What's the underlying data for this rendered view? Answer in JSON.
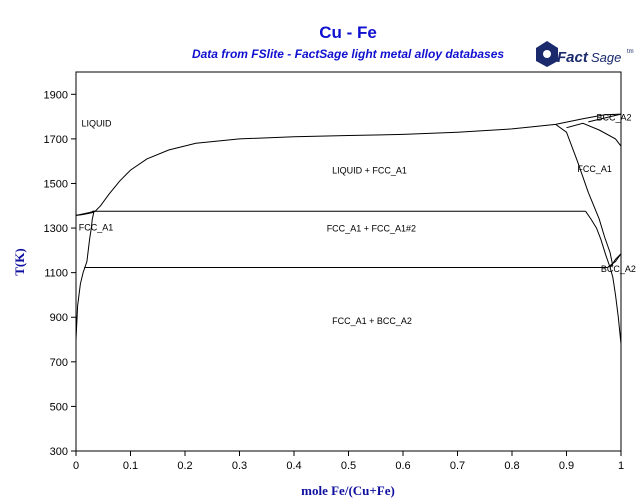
{
  "chart_data": {
    "type": "line",
    "title": "Cu - Fe",
    "subtitle": "Data from FSlite - FactSage light metal alloy databases",
    "xlabel": "mole Fe/(Cu+Fe)",
    "ylabel": "T(K)",
    "xlim": [
      0,
      1
    ],
    "ylim": [
      300,
      2000
    ],
    "xticks": [
      0,
      0.1,
      0.2,
      0.3,
      0.4,
      0.5,
      0.6,
      0.7,
      0.8,
      0.9,
      1
    ],
    "xtick_labels": [
      "0",
      "0.1",
      "0.2",
      "0.3",
      "0.4",
      "0.5",
      "0.6",
      "0.7",
      "0.8",
      "0.9",
      "1"
    ],
    "yticks": [
      300,
      500,
      700,
      900,
      1100,
      1300,
      1500,
      1700,
      1900
    ],
    "ytick_labels": [
      "300",
      "500",
      "700",
      "900",
      "1100",
      "1300",
      "1500",
      "1700",
      "1900"
    ],
    "grid": false,
    "series": [
      {
        "values": [
          [
            0,
            1357
          ],
          [
            0.01,
            1360
          ],
          [
            0.02,
            1364
          ],
          [
            0.03,
            1369
          ],
          [
            0.035,
            1375
          ],
          [
            0.045,
            1400
          ],
          [
            0.06,
            1450
          ],
          [
            0.08,
            1510
          ],
          [
            0.1,
            1560
          ],
          [
            0.13,
            1610
          ],
          [
            0.17,
            1650
          ],
          [
            0.22,
            1680
          ],
          [
            0.3,
            1700
          ],
          [
            0.4,
            1710
          ],
          [
            0.5,
            1715
          ],
          [
            0.6,
            1720
          ],
          [
            0.7,
            1730
          ],
          [
            0.8,
            1745
          ],
          [
            0.88,
            1765
          ],
          [
            0.93,
            1790
          ],
          [
            0.97,
            1808
          ],
          [
            1,
            1811
          ]
        ]
      },
      {
        "values": [
          [
            0,
            1357
          ],
          [
            0.01,
            1362
          ],
          [
            0.025,
            1370
          ],
          [
            0.033,
            1375
          ],
          [
            0.035,
            1375
          ]
        ]
      },
      {
        "values": [
          [
            0.03,
            1375
          ],
          [
            0.935,
            1375
          ]
        ]
      },
      {
        "values": [
          [
            0.015,
            1123
          ],
          [
            0.975,
            1123
          ]
        ]
      },
      {
        "values": [
          [
            0,
            800
          ],
          [
            0.003,
            950
          ],
          [
            0.008,
            1050
          ],
          [
            0.013,
            1100
          ],
          [
            0.02,
            1150
          ],
          [
            0.025,
            1250
          ],
          [
            0.028,
            1300
          ],
          [
            0.03,
            1340
          ],
          [
            0.033,
            1375
          ]
        ]
      },
      {
        "values": [
          [
            0.935,
            1375
          ],
          [
            0.945,
            1340
          ],
          [
            0.955,
            1300
          ],
          [
            0.963,
            1250
          ],
          [
            0.972,
            1180
          ],
          [
            0.98,
            1123
          ]
        ]
      },
      {
        "values": [
          [
            0.88,
            1765
          ],
          [
            0.9,
            1730
          ],
          [
            0.92,
            1600
          ],
          [
            0.94,
            1460
          ],
          [
            0.95,
            1400
          ],
          [
            0.96,
            1340
          ],
          [
            0.97,
            1260
          ],
          [
            0.98,
            1190
          ],
          [
            0.985,
            1130
          ]
        ]
      },
      {
        "values": [
          [
            0.9,
            1750
          ],
          [
            0.93,
            1770
          ],
          [
            0.96,
            1740
          ],
          [
            0.99,
            1700
          ],
          [
            1,
            1667
          ]
        ]
      },
      {
        "values": [
          [
            0.94,
            1776
          ],
          [
            1,
            1811
          ]
        ]
      },
      {
        "values": [
          [
            0.975,
            1123
          ],
          [
            0.99,
            1150
          ],
          [
            1,
            1185
          ]
        ]
      },
      {
        "values": [
          [
            0.98,
            1123
          ],
          [
            0.99,
            1160
          ],
          [
            1,
            1185
          ]
        ]
      },
      {
        "values": [
          [
            1,
            780
          ],
          [
            0.995,
            900
          ],
          [
            0.99,
            1000
          ],
          [
            0.985,
            1080
          ],
          [
            0.98,
            1123
          ]
        ]
      }
    ],
    "annotations": [
      {
        "text": "LIQUID",
        "x": 0.01,
        "y": 1755
      },
      {
        "text": "LIQUID + FCC_A1",
        "x": 0.47,
        "y": 1545
      },
      {
        "text": "FCC_A1",
        "x": 0.92,
        "y": 1552
      },
      {
        "text": "BCC_A2",
        "x": 0.955,
        "y": 1783
      },
      {
        "text": "FCC_A1",
        "x": 0.005,
        "y": 1290
      },
      {
        "text": "FCC_A1 + FCC_A1#2",
        "x": 0.46,
        "y": 1285
      },
      {
        "text": "BCC_A2",
        "x": 0.963,
        "y": 1103
      },
      {
        "text": "FCC_A1 + BCC_A2",
        "x": 0.47,
        "y": 870
      }
    ]
  },
  "logo": {
    "fact": "Fact",
    "sage": "Sage",
    "tm": "tm",
    "color": "#1a2a6c"
  }
}
